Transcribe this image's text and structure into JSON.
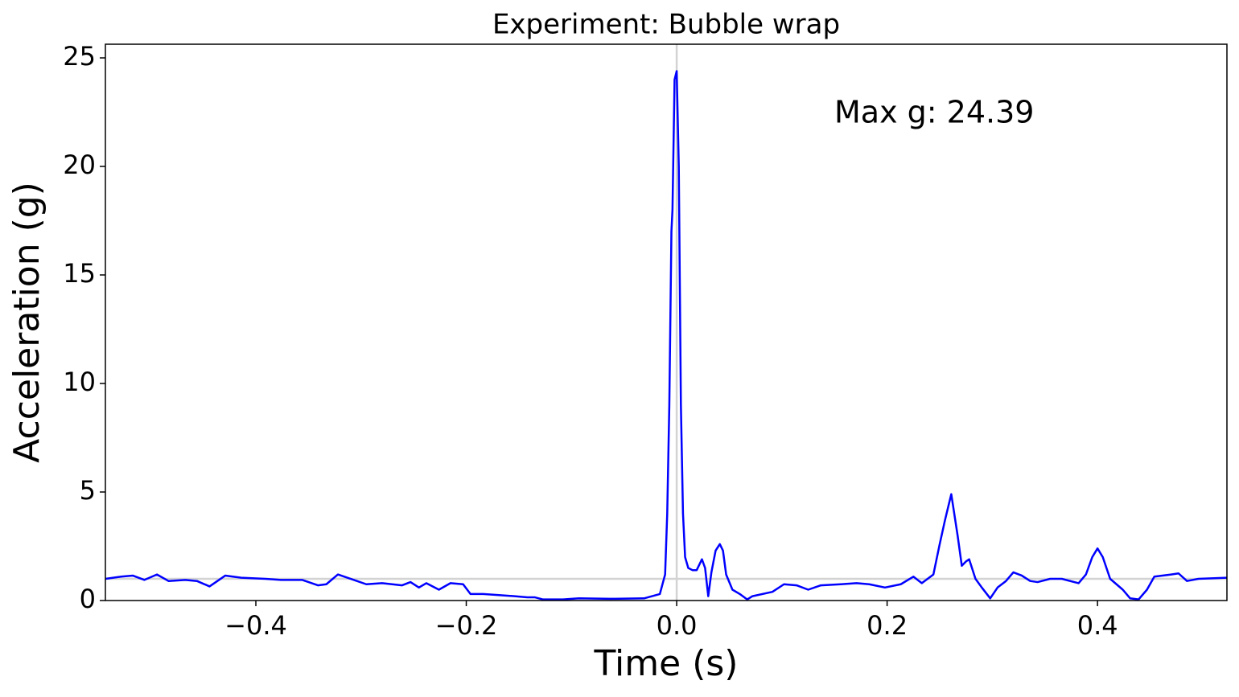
{
  "chart_data": {
    "type": "line",
    "title": "Experiment: Bubble wrap",
    "xlabel": "Time (s)",
    "ylabel": "Acceleration (g)",
    "annotation": "Max g: 24.39",
    "annotation_color": "#008000",
    "xlim": [
      -0.543,
      0.523
    ],
    "ylim": [
      0,
      25.63
    ],
    "xticks": [
      {
        "value": -0.4,
        "label": "−0.4"
      },
      {
        "value": -0.2,
        "label": "−0.2"
      },
      {
        "value": 0,
        "label": "0.0"
      },
      {
        "value": 0.2,
        "label": "0.2"
      },
      {
        "value": 0.4,
        "label": "0.4"
      }
    ],
    "yticks": [
      0,
      5,
      10,
      15,
      20,
      25
    ],
    "hline": 1,
    "vline": 0,
    "reference_color": "#d3d3d3",
    "x": [
      -0.543,
      -0.528,
      -0.517,
      -0.506,
      -0.494,
      -0.483,
      -0.467,
      -0.456,
      -0.444,
      -0.429,
      -0.414,
      -0.391,
      -0.376,
      -0.356,
      -0.341,
      -0.333,
      -0.322,
      -0.307,
      -0.295,
      -0.28,
      -0.261,
      -0.253,
      -0.245,
      -0.238,
      -0.226,
      -0.215,
      -0.203,
      -0.196,
      -0.184,
      -0.169,
      -0.154,
      -0.142,
      -0.135,
      -0.127,
      -0.108,
      -0.093,
      -0.062,
      -0.031,
      -0.016,
      -0.011,
      -0.009,
      -0.007,
      -0.005,
      -0.004,
      -0.002,
      0.0,
      0.002,
      0.004,
      0.006,
      0.008,
      0.011,
      0.015,
      0.019,
      0.024,
      0.027,
      0.03,
      0.033,
      0.037,
      0.041,
      0.044,
      0.047,
      0.053,
      0.06,
      0.067,
      0.072,
      0.091,
      0.102,
      0.114,
      0.125,
      0.137,
      0.156,
      0.171,
      0.183,
      0.198,
      0.213,
      0.225,
      0.233,
      0.244,
      0.25,
      0.255,
      0.261,
      0.267,
      0.271,
      0.275,
      0.278,
      0.284,
      0.29,
      0.298,
      0.305,
      0.313,
      0.32,
      0.328,
      0.336,
      0.343,
      0.355,
      0.366,
      0.382,
      0.389,
      0.395,
      0.4,
      0.405,
      0.412,
      0.424,
      0.431,
      0.439,
      0.447,
      0.454,
      0.47,
      0.477,
      0.485,
      0.496,
      0.523
    ],
    "series": [
      {
        "name": "Acceleration",
        "color": "#0000ff",
        "values": [
          1.0,
          1.1,
          1.15,
          0.95,
          1.2,
          0.9,
          0.95,
          0.9,
          0.65,
          1.15,
          1.05,
          1.0,
          0.95,
          0.95,
          0.7,
          0.75,
          1.2,
          0.95,
          0.75,
          0.8,
          0.7,
          0.85,
          0.6,
          0.8,
          0.5,
          0.8,
          0.75,
          0.3,
          0.3,
          0.25,
          0.2,
          0.15,
          0.15,
          0.05,
          0.05,
          0.1,
          0.08,
          0.1,
          0.3,
          1.2,
          4,
          9,
          17,
          18,
          24,
          24.39,
          20,
          9,
          4,
          2.0,
          1.5,
          1.4,
          1.4,
          1.9,
          1.5,
          0.2,
          1.3,
          2.3,
          2.6,
          2.3,
          1.2,
          0.5,
          0.3,
          0.05,
          0.2,
          0.4,
          0.75,
          0.7,
          0.5,
          0.7,
          0.75,
          0.8,
          0.75,
          0.6,
          0.75,
          1.1,
          0.8,
          1.2,
          2.6,
          3.7,
          4.9,
          3.0,
          1.6,
          1.8,
          1.9,
          1.0,
          0.6,
          0.1,
          0.6,
          0.9,
          1.3,
          1.15,
          0.9,
          0.85,
          1.0,
          1.0,
          0.8,
          1.2,
          2.0,
          2.4,
          2.0,
          1.0,
          0.5,
          0.1,
          0.05,
          0.5,
          1.1,
          1.2,
          1.25,
          0.9,
          1.0,
          1.05
        ]
      }
    ]
  }
}
